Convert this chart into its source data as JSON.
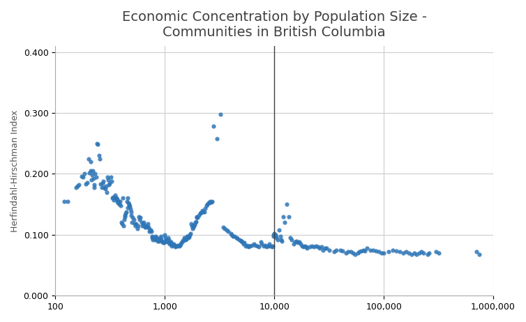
{
  "title": "Economic Concentration by Population Size -\nCommunities in British Columbia",
  "ylabel": "Herfindahl-Hirschman Index",
  "xlabel": "",
  "dot_color": "#2E75B6",
  "vline_x": 10000,
  "vline_color": "#404040",
  "ylim": [
    0.0,
    0.41
  ],
  "yticks": [
    0.0,
    0.1,
    0.2,
    0.3,
    0.4
  ],
  "xlim_log": [
    100,
    1000000
  ],
  "background_color": "#ffffff",
  "grid_color": "#cccccc",
  "title_color": "#404040",
  "title_fontsize": 14,
  "label_fontsize": 9,
  "dot_size": 20,
  "dot_alpha": 0.85,
  "scatter_data": [
    [
      120,
      0.155
    ],
    [
      130,
      0.155
    ],
    [
      155,
      0.178
    ],
    [
      160,
      0.18
    ],
    [
      165,
      0.182
    ],
    [
      175,
      0.196
    ],
    [
      180,
      0.195
    ],
    [
      185,
      0.2
    ],
    [
      190,
      0.183
    ],
    [
      195,
      0.186
    ],
    [
      200,
      0.225
    ],
    [
      205,
      0.202
    ],
    [
      210,
      0.22
    ],
    [
      212,
      0.205
    ],
    [
      215,
      0.19
    ],
    [
      218,
      0.198
    ],
    [
      220,
      0.205
    ],
    [
      222,
      0.192
    ],
    [
      225,
      0.178
    ],
    [
      228,
      0.182
    ],
    [
      230,
      0.2
    ],
    [
      235,
      0.195
    ],
    [
      240,
      0.25
    ],
    [
      245,
      0.248
    ],
    [
      250,
      0.23
    ],
    [
      255,
      0.225
    ],
    [
      260,
      0.183
    ],
    [
      265,
      0.178
    ],
    [
      270,
      0.185
    ],
    [
      275,
      0.188
    ],
    [
      280,
      0.178
    ],
    [
      285,
      0.175
    ],
    [
      290,
      0.18
    ],
    [
      295,
      0.17
    ],
    [
      300,
      0.195
    ],
    [
      305,
      0.19
    ],
    [
      310,
      0.182
    ],
    [
      315,
      0.185
    ],
    [
      320,
      0.195
    ],
    [
      325,
      0.188
    ],
    [
      330,
      0.16
    ],
    [
      335,
      0.162
    ],
    [
      340,
      0.157
    ],
    [
      345,
      0.162
    ],
    [
      350,
      0.165
    ],
    [
      355,
      0.16
    ],
    [
      360,
      0.16
    ],
    [
      365,
      0.158
    ],
    [
      370,
      0.155
    ],
    [
      375,
      0.152
    ],
    [
      380,
      0.155
    ],
    [
      385,
      0.15
    ],
    [
      390,
      0.155
    ],
    [
      395,
      0.148
    ],
    [
      400,
      0.12
    ],
    [
      410,
      0.118
    ],
    [
      415,
      0.16
    ],
    [
      420,
      0.115
    ],
    [
      425,
      0.125
    ],
    [
      430,
      0.13
    ],
    [
      435,
      0.132
    ],
    [
      440,
      0.135
    ],
    [
      445,
      0.138
    ],
    [
      450,
      0.155
    ],
    [
      455,
      0.145
    ],
    [
      460,
      0.16
    ],
    [
      465,
      0.152
    ],
    [
      470,
      0.15
    ],
    [
      475,
      0.148
    ],
    [
      480,
      0.147
    ],
    [
      485,
      0.142
    ],
    [
      490,
      0.138
    ],
    [
      495,
      0.132
    ],
    [
      500,
      0.12
    ],
    [
      510,
      0.128
    ],
    [
      520,
      0.125
    ],
    [
      530,
      0.118
    ],
    [
      540,
      0.115
    ],
    [
      550,
      0.118
    ],
    [
      560,
      0.11
    ],
    [
      570,
      0.115
    ],
    [
      580,
      0.13
    ],
    [
      590,
      0.125
    ],
    [
      600,
      0.128
    ],
    [
      610,
      0.12
    ],
    [
      620,
      0.115
    ],
    [
      630,
      0.118
    ],
    [
      640,
      0.12
    ],
    [
      650,
      0.115
    ],
    [
      660,
      0.112
    ],
    [
      670,
      0.114
    ],
    [
      680,
      0.115
    ],
    [
      690,
      0.112
    ],
    [
      700,
      0.118
    ],
    [
      710,
      0.112
    ],
    [
      720,
      0.105
    ],
    [
      730,
      0.108
    ],
    [
      740,
      0.108
    ],
    [
      750,
      0.105
    ],
    [
      760,
      0.095
    ],
    [
      770,
      0.098
    ],
    [
      780,
      0.092
    ],
    [
      790,
      0.095
    ],
    [
      800,
      0.095
    ],
    [
      810,
      0.092
    ],
    [
      820,
      0.098
    ],
    [
      830,
      0.095
    ],
    [
      840,
      0.093
    ],
    [
      850,
      0.092
    ],
    [
      860,
      0.09
    ],
    [
      870,
      0.092
    ],
    [
      880,
      0.092
    ],
    [
      890,
      0.09
    ],
    [
      900,
      0.095
    ],
    [
      910,
      0.092
    ],
    [
      920,
      0.098
    ],
    [
      930,
      0.092
    ],
    [
      940,
      0.09
    ],
    [
      950,
      0.088
    ],
    [
      960,
      0.088
    ],
    [
      970,
      0.087
    ],
    [
      980,
      0.087
    ],
    [
      990,
      0.088
    ],
    [
      1000,
      0.1
    ],
    [
      1010,
      0.095
    ],
    [
      1020,
      0.09
    ],
    [
      1030,
      0.092
    ],
    [
      1050,
      0.088
    ],
    [
      1060,
      0.09
    ],
    [
      1080,
      0.095
    ],
    [
      1090,
      0.092
    ],
    [
      1100,
      0.085
    ],
    [
      1110,
      0.087
    ],
    [
      1130,
      0.088
    ],
    [
      1140,
      0.086
    ],
    [
      1160,
      0.082
    ],
    [
      1170,
      0.084
    ],
    [
      1200,
      0.085
    ],
    [
      1220,
      0.083
    ],
    [
      1250,
      0.08
    ],
    [
      1270,
      0.082
    ],
    [
      1300,
      0.082
    ],
    [
      1320,
      0.083
    ],
    [
      1350,
      0.082
    ],
    [
      1370,
      0.083
    ],
    [
      1400,
      0.085
    ],
    [
      1420,
      0.087
    ],
    [
      1450,
      0.09
    ],
    [
      1470,
      0.091
    ],
    [
      1500,
      0.095
    ],
    [
      1520,
      0.093
    ],
    [
      1550,
      0.092
    ],
    [
      1570,
      0.093
    ],
    [
      1600,
      0.098
    ],
    [
      1620,
      0.097
    ],
    [
      1650,
      0.095
    ],
    [
      1670,
      0.096
    ],
    [
      1700,
      0.1
    ],
    [
      1720,
      0.102
    ],
    [
      1750,
      0.118
    ],
    [
      1770,
      0.115
    ],
    [
      1800,
      0.11
    ],
    [
      1820,
      0.112
    ],
    [
      1850,
      0.115
    ],
    [
      1870,
      0.117
    ],
    [
      1900,
      0.12
    ],
    [
      1920,
      0.122
    ],
    [
      1950,
      0.13
    ],
    [
      1970,
      0.128
    ],
    [
      2000,
      0.128
    ],
    [
      2050,
      0.132
    ],
    [
      2100,
      0.135
    ],
    [
      2150,
      0.137
    ],
    [
      2200,
      0.14
    ],
    [
      2250,
      0.138
    ],
    [
      2300,
      0.138
    ],
    [
      2350,
      0.143
    ],
    [
      2400,
      0.148
    ],
    [
      2450,
      0.15
    ],
    [
      2500,
      0.152
    ],
    [
      2550,
      0.153
    ],
    [
      2600,
      0.155
    ],
    [
      2650,
      0.154
    ],
    [
      2700,
      0.155
    ],
    [
      2800,
      0.278
    ],
    [
      3000,
      0.258
    ],
    [
      3200,
      0.298
    ],
    [
      3400,
      0.112
    ],
    [
      3500,
      0.11
    ],
    [
      3700,
      0.108
    ],
    [
      3800,
      0.105
    ],
    [
      4000,
      0.102
    ],
    [
      4100,
      0.1
    ],
    [
      4200,
      0.098
    ],
    [
      4300,
      0.097
    ],
    [
      4500,
      0.095
    ],
    [
      4600,
      0.094
    ],
    [
      4800,
      0.092
    ],
    [
      4900,
      0.091
    ],
    [
      5000,
      0.09
    ],
    [
      5100,
      0.088
    ],
    [
      5200,
      0.085
    ],
    [
      5300,
      0.087
    ],
    [
      5500,
      0.082
    ],
    [
      5600,
      0.083
    ],
    [
      5800,
      0.08
    ],
    [
      5900,
      0.082
    ],
    [
      6000,
      0.082
    ],
    [
      6200,
      0.083
    ],
    [
      6500,
      0.085
    ],
    [
      6700,
      0.083
    ],
    [
      7000,
      0.082
    ],
    [
      7200,
      0.08
    ],
    [
      7500,
      0.088
    ],
    [
      7700,
      0.085
    ],
    [
      8000,
      0.082
    ],
    [
      8200,
      0.083
    ],
    [
      8500,
      0.08
    ],
    [
      8700,
      0.082
    ],
    [
      9000,
      0.085
    ],
    [
      9200,
      0.082
    ],
    [
      9500,
      0.08
    ],
    [
      9700,
      0.082
    ],
    [
      9800,
      0.1
    ],
    [
      9900,
      0.098
    ],
    [
      10000,
      0.102
    ],
    [
      10100,
      0.1
    ],
    [
      10200,
      0.1
    ],
    [
      10300,
      0.098
    ],
    [
      10500,
      0.095
    ],
    [
      10700,
      0.092
    ],
    [
      11000,
      0.108
    ],
    [
      11300,
      0.098
    ],
    [
      11500,
      0.092
    ],
    [
      11800,
      0.09
    ],
    [
      12000,
      0.13
    ],
    [
      12500,
      0.12
    ],
    [
      13000,
      0.15
    ],
    [
      13500,
      0.13
    ],
    [
      14000,
      0.095
    ],
    [
      14500,
      0.092
    ],
    [
      15000,
      0.085
    ],
    [
      15500,
      0.088
    ],
    [
      16000,
      0.09
    ],
    [
      16500,
      0.087
    ],
    [
      17000,
      0.088
    ],
    [
      17500,
      0.085
    ],
    [
      18000,
      0.082
    ],
    [
      18500,
      0.08
    ],
    [
      19000,
      0.082
    ],
    [
      19500,
      0.08
    ],
    [
      20000,
      0.078
    ],
    [
      21000,
      0.08
    ],
    [
      22000,
      0.082
    ],
    [
      23000,
      0.08
    ],
    [
      24000,
      0.082
    ],
    [
      25000,
      0.08
    ],
    [
      26000,
      0.078
    ],
    [
      27000,
      0.08
    ],
    [
      28000,
      0.075
    ],
    [
      29000,
      0.078
    ],
    [
      30000,
      0.078
    ],
    [
      32000,
      0.075
    ],
    [
      35000,
      0.072
    ],
    [
      37000,
      0.075
    ],
    [
      40000,
      0.075
    ],
    [
      42000,
      0.073
    ],
    [
      45000,
      0.07
    ],
    [
      47000,
      0.072
    ],
    [
      50000,
      0.072
    ],
    [
      52000,
      0.07
    ],
    [
      55000,
      0.068
    ],
    [
      58000,
      0.07
    ],
    [
      60000,
      0.072
    ],
    [
      62000,
      0.073
    ],
    [
      65000,
      0.075
    ],
    [
      67000,
      0.073
    ],
    [
      70000,
      0.078
    ],
    [
      75000,
      0.075
    ],
    [
      80000,
      0.075
    ],
    [
      85000,
      0.073
    ],
    [
      90000,
      0.072
    ],
    [
      95000,
      0.07
    ],
    [
      100000,
      0.07
    ],
    [
      110000,
      0.072
    ],
    [
      120000,
      0.075
    ],
    [
      130000,
      0.073
    ],
    [
      140000,
      0.072
    ],
    [
      150000,
      0.07
    ],
    [
      160000,
      0.072
    ],
    [
      170000,
      0.07
    ],
    [
      180000,
      0.068
    ],
    [
      190000,
      0.07
    ],
    [
      200000,
      0.068
    ],
    [
      210000,
      0.07
    ],
    [
      220000,
      0.072
    ],
    [
      230000,
      0.07
    ],
    [
      250000,
      0.068
    ],
    [
      260000,
      0.07
    ],
    [
      300000,
      0.072
    ],
    [
      320000,
      0.07
    ],
    [
      700000,
      0.072
    ],
    [
      750000,
      0.068
    ]
  ]
}
